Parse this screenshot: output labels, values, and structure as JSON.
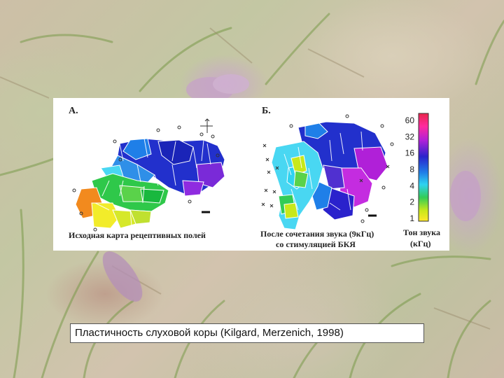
{
  "figure": {
    "panel_a": {
      "letter": "А.",
      "caption": "Исходная карта рецептивных полей"
    },
    "panel_b": {
      "letter": "Б.",
      "caption_line1": "После сочетания звука (9кГц)",
      "caption_line2": "со стимуляцией БКЯ"
    },
    "colorbar": {
      "ticks": [
        "60",
        "32",
        "16",
        "8",
        "4",
        "2",
        "1"
      ],
      "title_line1": "Тон звука",
      "title_line2": "(кГц)",
      "colors": [
        "#e8264a",
        "#ff2a9e",
        "#b020d8",
        "#2a22cc",
        "#1f7fe8",
        "#2fd3f0",
        "#33cc55",
        "#c8e81a",
        "#ffe82a"
      ]
    }
  },
  "caption": "Пластичность слуховой коры (Kilgard, Merzenich, 1998)"
}
